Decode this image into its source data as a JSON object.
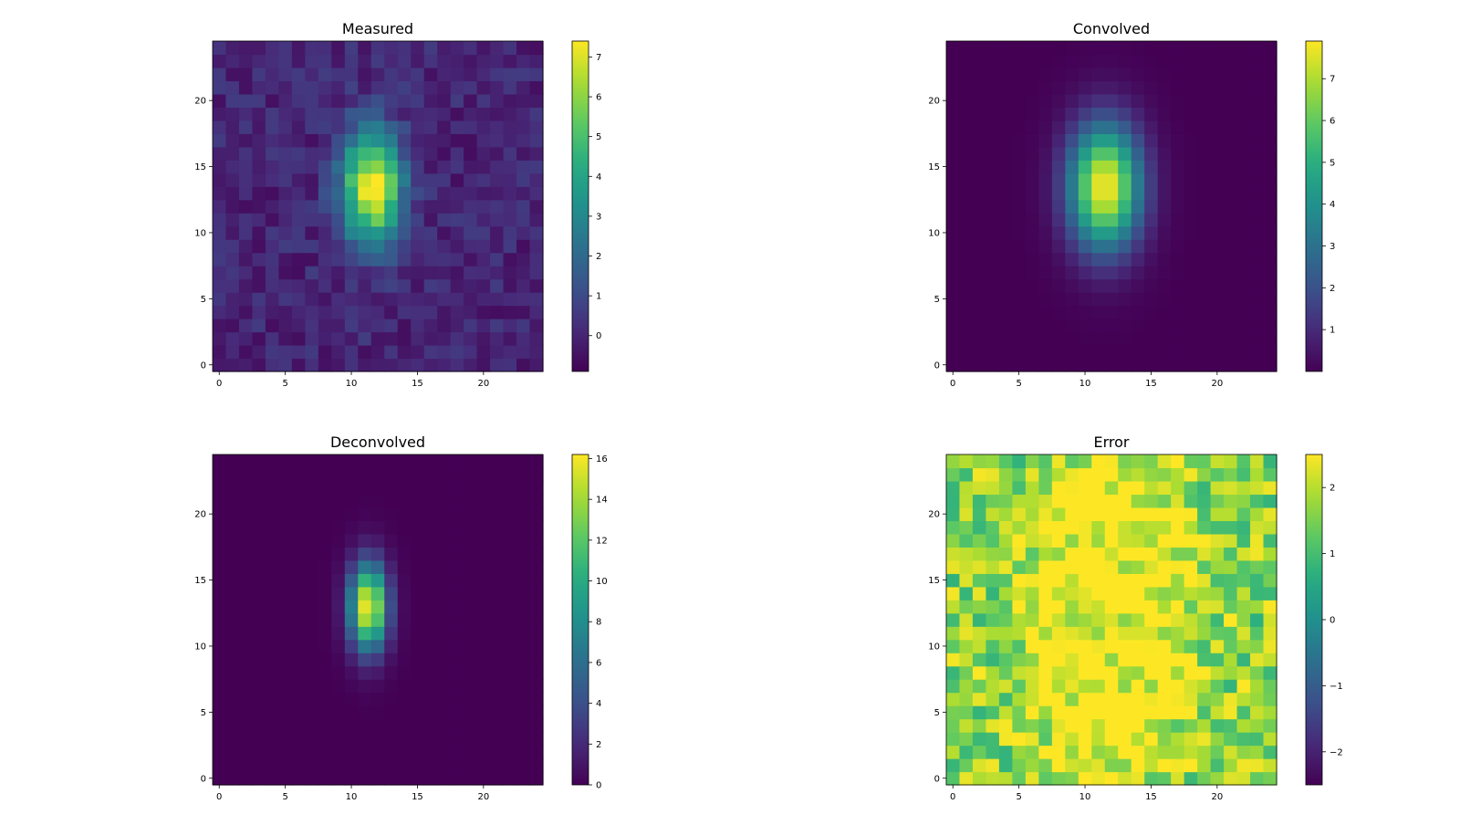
{
  "figure": {
    "background": "#ffffff",
    "colormap": "viridis"
  },
  "chart_data": [
    {
      "type": "heatmap",
      "title": "Measured",
      "grid_size": 25,
      "field": {
        "kind": "gaussian",
        "peak": 7.4,
        "center_x": 11.6,
        "center_y": 13.5,
        "sigma_x": 1.6,
        "sigma_y": 3.0,
        "noise_amplitude": 0.6,
        "seed": 11,
        "floor": -0.9,
        "ceiling": 7.4
      },
      "xlim": [
        -0.5,
        24.5
      ],
      "ylim": [
        -0.5,
        24.5
      ],
      "xticks": [
        0,
        5,
        10,
        15,
        20
      ],
      "yticks": [
        0,
        5,
        10,
        15,
        20
      ],
      "colorbar": {
        "min": -0.9,
        "max": 7.4,
        "ticks": [
          0,
          1,
          2,
          3,
          4,
          5,
          6,
          7
        ],
        "tick_labels": [
          "0",
          "1",
          "2",
          "3",
          "4",
          "5",
          "6",
          "7"
        ]
      }
    },
    {
      "type": "heatmap",
      "title": "Convolved",
      "grid_size": 25,
      "field": {
        "kind": "gaussian",
        "peak": 7.9,
        "center_x": 11.5,
        "center_y": 13.5,
        "sigma_x": 1.9,
        "sigma_y": 3.3,
        "noise_amplitude": 0,
        "seed": 3,
        "floor": 0,
        "ceiling": 7.9
      },
      "xlim": [
        -0.5,
        24.5
      ],
      "ylim": [
        -0.5,
        24.5
      ],
      "xticks": [
        0,
        5,
        10,
        15,
        20
      ],
      "yticks": [
        0,
        5,
        10,
        15,
        20
      ],
      "colorbar": {
        "min": 0,
        "max": 7.9,
        "ticks": [
          1,
          2,
          3,
          4,
          5,
          6,
          7
        ],
        "tick_labels": [
          "1",
          "2",
          "3",
          "4",
          "5",
          "6",
          "7"
        ]
      }
    },
    {
      "type": "heatmap",
      "title": "Deconvolved",
      "grid_size": 25,
      "field": {
        "kind": "gaussian",
        "peak": 16.2,
        "center_x": 11.3,
        "center_y": 13.0,
        "sigma_x": 1.0,
        "sigma_y": 2.3,
        "noise_amplitude": 0,
        "seed": 5,
        "floor": 0,
        "ceiling": 16.2
      },
      "xlim": [
        -0.5,
        24.5
      ],
      "ylim": [
        -0.5,
        24.5
      ],
      "xticks": [
        0,
        5,
        10,
        15,
        20
      ],
      "yticks": [
        0,
        5,
        10,
        15,
        20
      ],
      "colorbar": {
        "min": 0,
        "max": 16.2,
        "ticks": [
          0,
          2,
          4,
          6,
          8,
          10,
          12,
          14,
          16
        ],
        "tick_labels": [
          "0",
          "2",
          "4",
          "6",
          "8",
          "10",
          "12",
          "14",
          "16"
        ]
      }
    },
    {
      "type": "heatmap",
      "title": "Error",
      "grid_size": 25,
      "field": {
        "kind": "error",
        "high": 2.5,
        "base": 1.6,
        "center_x": 12.0,
        "center_y": 12.5,
        "sigma_x": 3.2,
        "sigma_y": 7.0,
        "noise_amplitude": 0.9,
        "seed": 29,
        "floor": -2.5,
        "ceiling": 2.5
      },
      "xlim": [
        -0.5,
        24.5
      ],
      "ylim": [
        -0.5,
        24.5
      ],
      "xticks": [
        0,
        5,
        10,
        15,
        20
      ],
      "yticks": [
        0,
        5,
        10,
        15,
        20
      ],
      "colorbar": {
        "min": -2.5,
        "max": 2.5,
        "ticks": [
          -2,
          -1,
          0,
          1,
          2
        ],
        "tick_labels": [
          "−2",
          "−1",
          "0",
          "1",
          "2"
        ]
      }
    }
  ]
}
